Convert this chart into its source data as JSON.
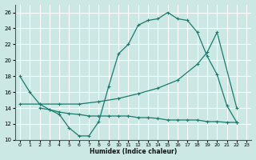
{
  "xlabel": "Humidex (Indice chaleur)",
  "bg_color": "#cce8e4",
  "grid_color": "#ffffff",
  "line_color": "#1a7a6e",
  "xlim": [
    -0.5,
    23.5
  ],
  "ylim": [
    10,
    27
  ],
  "yticks": [
    10,
    12,
    14,
    16,
    18,
    20,
    22,
    24,
    26
  ],
  "xticks": [
    0,
    1,
    2,
    3,
    4,
    5,
    6,
    7,
    8,
    9,
    10,
    11,
    12,
    13,
    14,
    15,
    16,
    17,
    18,
    19,
    20,
    21,
    22,
    23
  ],
  "line1_x": [
    0,
    1,
    2,
    3,
    4,
    5,
    6,
    7,
    8,
    9,
    10,
    11,
    12,
    13,
    14,
    15,
    16,
    17,
    18,
    19,
    20,
    21,
    22
  ],
  "line1_y": [
    18,
    16,
    14.5,
    13.8,
    13.2,
    11.5,
    10.5,
    10.5,
    12.3,
    16.7,
    20.8,
    22.0,
    24.4,
    25.0,
    25.2,
    26.0,
    25.2,
    25.0,
    23.5,
    20.5,
    18.2,
    14.3,
    12.2
  ],
  "line2_x": [
    0,
    2,
    4,
    6,
    8,
    10,
    12,
    14,
    16,
    18,
    19,
    20,
    22
  ],
  "line2_y": [
    14.5,
    14.5,
    14.5,
    14.5,
    14.8,
    15.2,
    15.8,
    16.5,
    17.5,
    19.5,
    21.0,
    23.5,
    14.0
  ],
  "line3_x": [
    2,
    3,
    4,
    5,
    6,
    7,
    8,
    9,
    10,
    11,
    12,
    13,
    14,
    15,
    16,
    17,
    18,
    19,
    20,
    21,
    22
  ],
  "line3_y": [
    14.0,
    13.8,
    13.5,
    13.3,
    13.2,
    13.0,
    13.0,
    13.0,
    13.0,
    13.0,
    12.8,
    12.8,
    12.7,
    12.5,
    12.5,
    12.5,
    12.5,
    12.3,
    12.3,
    12.2,
    12.2
  ]
}
